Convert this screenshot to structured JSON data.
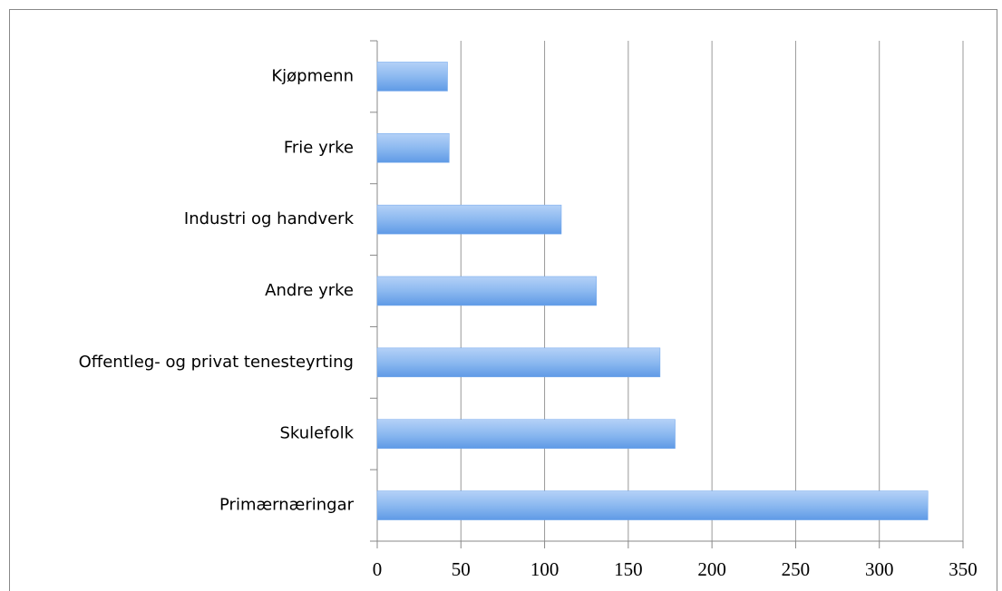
{
  "chart_data": {
    "type": "barh",
    "categories": [
      "Kjøpmenn",
      "Frie yrke",
      "Industri og handverk",
      "Andre yrke",
      "Offentleg- og privat tenesteyrting",
      "Skulefolk",
      "Primærnæringar"
    ],
    "values": [
      42,
      43,
      110,
      131,
      169,
      178,
      329
    ],
    "color": "#6fa6ec",
    "xlim": [
      0,
      350
    ],
    "xticks": [
      0,
      50,
      100,
      150,
      200,
      250,
      300,
      350
    ],
    "grid": true
  }
}
